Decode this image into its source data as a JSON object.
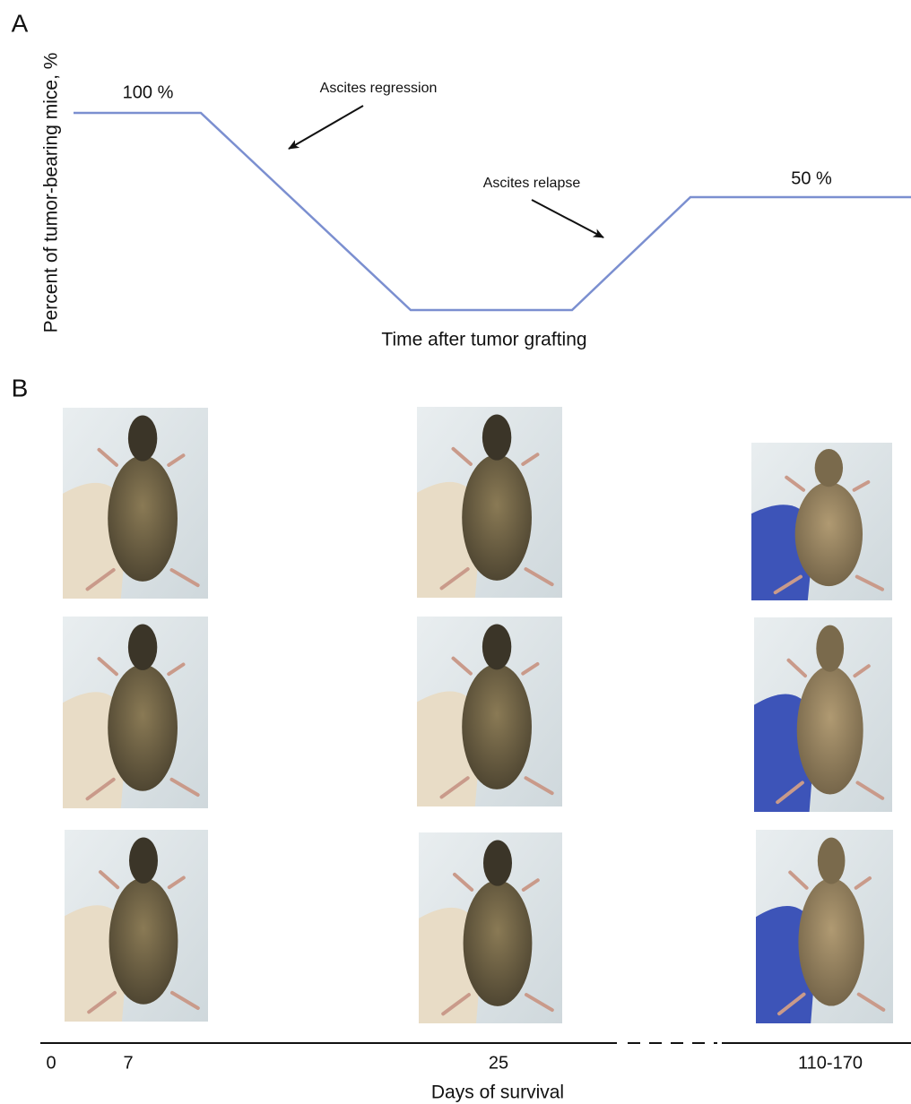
{
  "panel_a": {
    "label": "A",
    "y_axis_label": "Percent of tumor-bearing mice, %",
    "x_axis_label": "Time after tumor grafting",
    "annotations": [
      "100 %",
      "50 %",
      "Ascites regression",
      "Ascites relapse"
    ]
  },
  "panel_b": {
    "label": "B",
    "x_axis_label": "Days of survival",
    "ticks": [
      "0",
      "7",
      "25",
      "110-170"
    ]
  }
}
